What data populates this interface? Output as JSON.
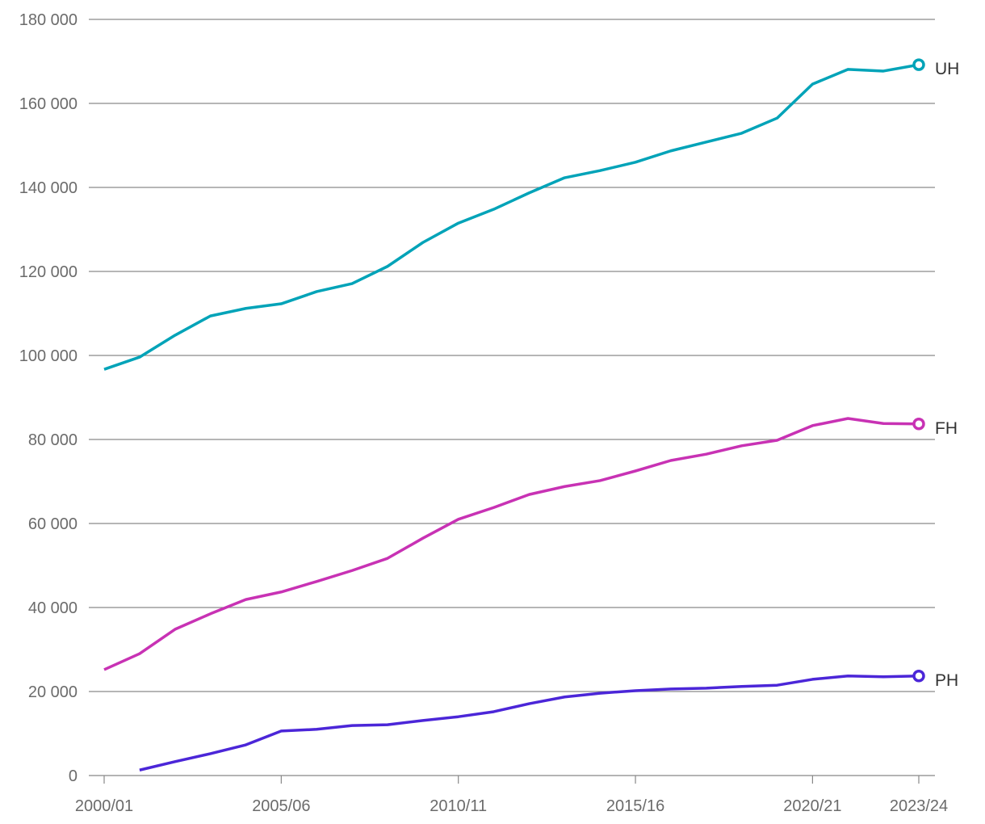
{
  "chart_data": {
    "type": "line",
    "title": "",
    "xlabel": "",
    "ylabel": "",
    "ylim": [
      0,
      180000
    ],
    "yticks": [
      0,
      20000,
      40000,
      60000,
      80000,
      100000,
      120000,
      140000,
      160000,
      180000
    ],
    "ytick_labels": [
      "0",
      "20 000",
      "40 000",
      "60 000",
      "80 000",
      "100 000",
      "120 000",
      "140 000",
      "160 000",
      "180 000"
    ],
    "grid": "horizontal",
    "categories": [
      "2000/01",
      "2001/02",
      "2002/03",
      "2003/04",
      "2004/05",
      "2005/06",
      "2006/07",
      "2007/08",
      "2008/09",
      "2009/10",
      "2010/11",
      "2011/12",
      "2012/13",
      "2013/14",
      "2014/15",
      "2015/16",
      "2016/17",
      "2017/18",
      "2018/19",
      "2019/20",
      "2020/21",
      "2021/22",
      "2022/23",
      "2023/24"
    ],
    "xtick_labels": [
      "2000/01",
      "2005/06",
      "2010/11",
      "2015/16",
      "2020/21",
      "2023/24"
    ],
    "legend": "end-of-line labels, right",
    "series": [
      {
        "name": "UH",
        "color": "#00a3b8",
        "values": [
          96700,
          99600,
          104800,
          109400,
          111200,
          112300,
          115200,
          117100,
          121200,
          126900,
          131500,
          134800,
          138700,
          142300,
          144000,
          146000,
          148700,
          150800,
          152900,
          156500,
          164600,
          168100,
          167700,
          169200
        ]
      },
      {
        "name": "FH",
        "color": "#c832b4",
        "values": [
          25200,
          29000,
          34800,
          38500,
          41900,
          43700,
          46200,
          48800,
          51700,
          56500,
          61000,
          63800,
          66900,
          68800,
          70200,
          72500,
          75000,
          76500,
          78500,
          79800,
          83300,
          85000,
          83800,
          83700
        ]
      },
      {
        "name": "PH",
        "color": "#4b26d8",
        "values": [
          null,
          1300,
          3300,
          5200,
          7300,
          10600,
          11000,
          11900,
          12100,
          13100,
          14000,
          15200,
          17100,
          18700,
          19600,
          20200,
          20600,
          20800,
          21200,
          21500,
          22900,
          23700,
          23500,
          23700
        ]
      }
    ]
  }
}
